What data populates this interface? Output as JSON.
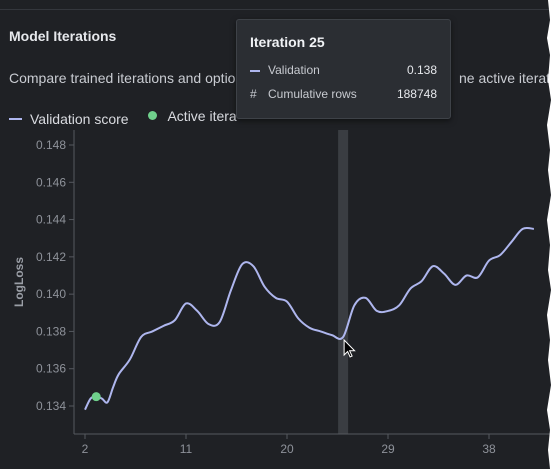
{
  "panel": {
    "title": "Model Iterations",
    "subtitle": "Compare trained iterations and optio",
    "subtitle_tail": "ne active iteratio"
  },
  "legend": {
    "validation_label": "Validation score",
    "active_label": "Active itera"
  },
  "tooltip": {
    "title": "Iteration 25",
    "rows": [
      {
        "label": "Validation",
        "value": "0.138"
      },
      {
        "label": "Cumulative rows",
        "value": "188748"
      }
    ],
    "row_symbol": "#"
  },
  "colors": {
    "line": "#aeb6ee",
    "active_dot": "#6fd08c",
    "hover_band": "#3a3d42"
  },
  "chart_data": {
    "type": "line",
    "xlabel": "",
    "ylabel": "LogLoss",
    "xlim": [
      1,
      42
    ],
    "ylim": [
      0.1326,
      0.1487
    ],
    "x_ticks": [
      2,
      11,
      20,
      29,
      38
    ],
    "y_ticks": [
      0.134,
      0.136,
      0.138,
      0.14,
      0.142,
      0.144,
      0.146,
      0.148
    ],
    "y_tick_labels": [
      "0.134",
      "0.136",
      "0.138",
      "0.140",
      "0.142",
      "0.144",
      "0.146",
      "0.148"
    ],
    "hover_x": 25,
    "active_point": {
      "x": 3,
      "y": 0.1345
    },
    "series": [
      {
        "x": [
          2,
          2.5,
          3,
          3.5,
          4,
          4.5,
          5,
          6,
          7,
          8,
          9,
          10,
          11,
          12,
          13,
          14,
          15,
          16,
          17,
          18,
          19,
          20,
          21,
          22,
          23,
          24,
          25,
          26,
          27,
          28,
          29,
          30,
          31,
          32,
          33,
          34,
          35,
          36,
          37,
          38,
          39,
          40,
          41,
          42
        ],
        "y": [
          0.1338,
          0.1344,
          0.1345,
          0.1344,
          0.1342,
          0.135,
          0.1357,
          0.1365,
          0.1377,
          0.138,
          0.1383,
          0.1386,
          0.1395,
          0.1391,
          0.1384,
          0.1385,
          0.1402,
          0.1416,
          0.1415,
          0.1404,
          0.1398,
          0.1396,
          0.1387,
          0.1382,
          0.138,
          0.1378,
          0.1377,
          0.1394,
          0.1398,
          0.1391,
          0.1391,
          0.1394,
          0.1403,
          0.1407,
          0.1415,
          0.1411,
          0.1405,
          0.141,
          0.1409,
          0.1418,
          0.1421,
          0.1428,
          0.1435,
          0.1435
        ]
      }
    ],
    "grid": false,
    "legend": "top-left"
  }
}
